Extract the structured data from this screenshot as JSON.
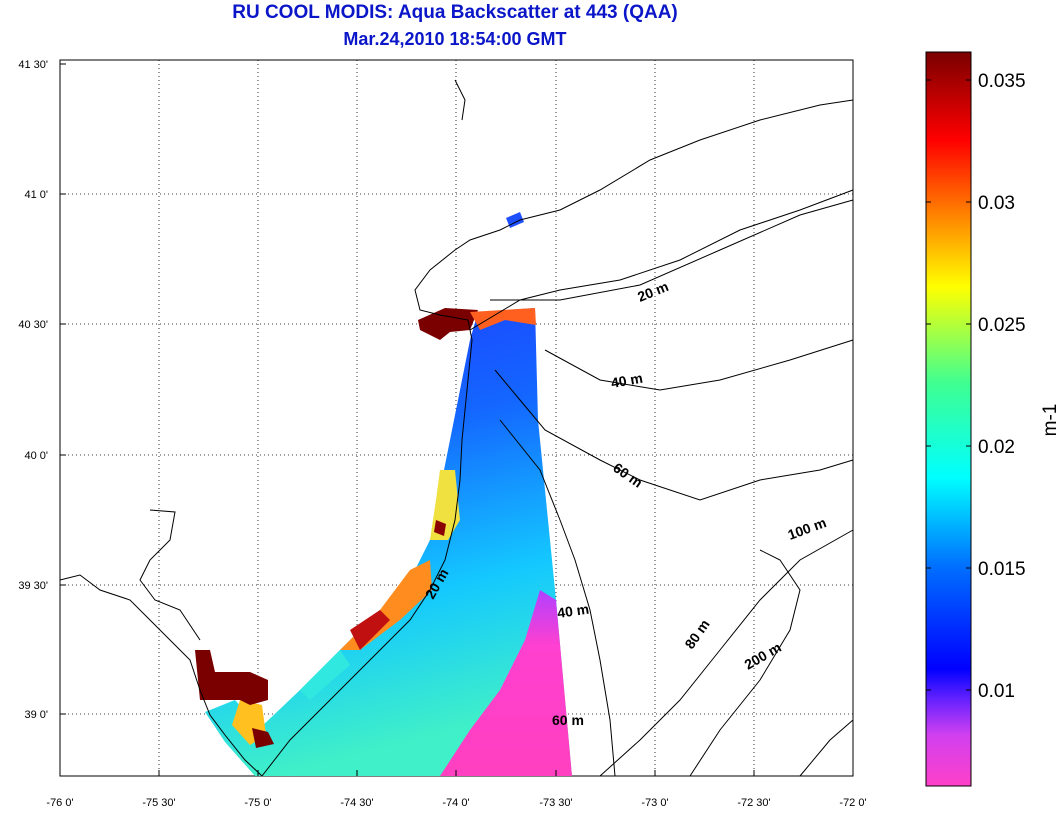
{
  "title": {
    "line1": "RU COOL MODIS: Aqua Backscatter at 443 (QAA)",
    "line2": "Mar.24,2010 18:54:00 GMT"
  },
  "axes": {
    "x_ticks": [
      "-76 0'",
      "-75 30'",
      "-75 0'",
      "-74 30'",
      "-74 0'",
      "-73 30'",
      "-73 0'",
      "-72 30'",
      "-72 0'"
    ],
    "y_ticks": [
      "41 30'",
      "41 0'",
      "40 30'",
      "40 0'",
      "39 30'",
      "39 0'"
    ]
  },
  "colorbar": {
    "unit": "m-1",
    "labels": [
      "0.035",
      "0.03",
      "0.025",
      "0.02",
      "0.015",
      "0.01"
    ],
    "colors": [
      "#7a0000",
      "#ff0000",
      "#ff8000",
      "#ffff00",
      "#40ff80",
      "#00ffff",
      "#0070ff",
      "#0000ff",
      "#c040ff",
      "#ff40c0"
    ]
  },
  "isobaths": [
    "20 m",
    "40 m",
    "60 m",
    "100 m",
    "20 m",
    "40 m",
    "60 m",
    "80 m",
    "200 m"
  ]
}
